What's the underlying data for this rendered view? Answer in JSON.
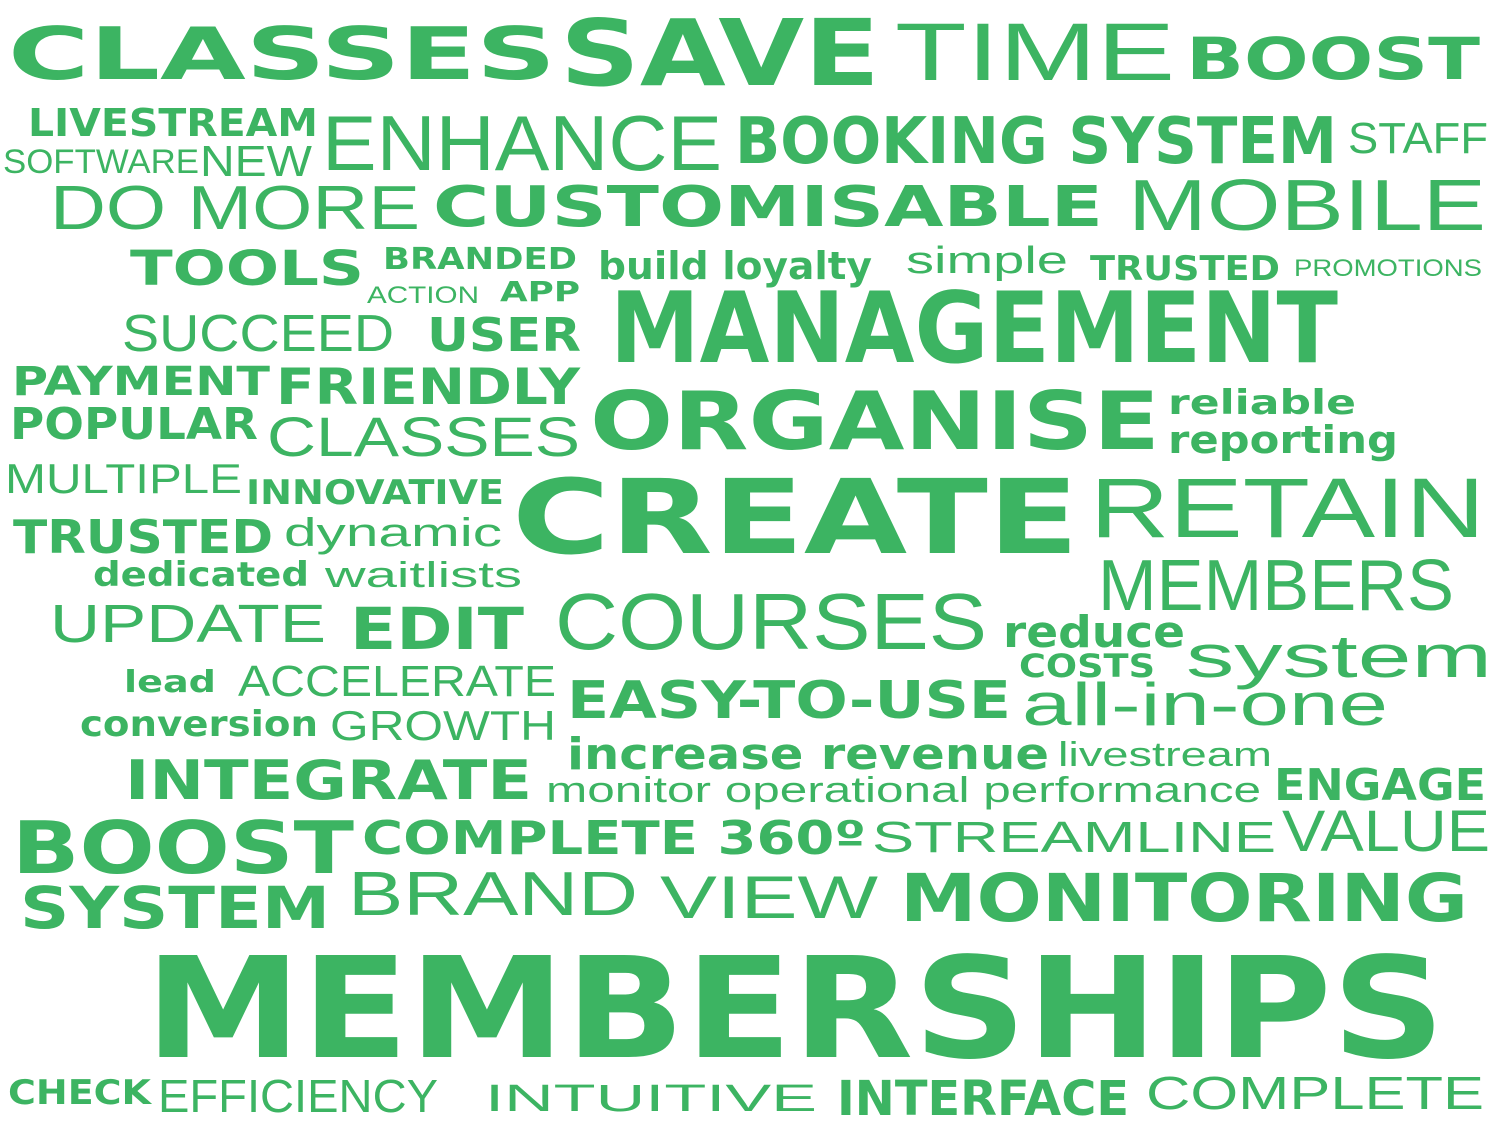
{
  "colors": {
    "text": "#3cb462",
    "background": "#ffffff"
  },
  "words": [
    {
      "id": "classes-1",
      "text": "CLASSES",
      "weight": "bold"
    },
    {
      "id": "save",
      "text": "SAVE",
      "weight": "bold"
    },
    {
      "id": "time",
      "text": "TIME",
      "weight": "light"
    },
    {
      "id": "boost-1",
      "text": "BOOST",
      "weight": "bold"
    },
    {
      "id": "livestream-1",
      "text": "LIVESTREAM",
      "weight": "bold"
    },
    {
      "id": "enhance",
      "text": "ENHANCE",
      "weight": "light"
    },
    {
      "id": "booking-system",
      "text": "BOOKING SYSTEM",
      "weight": "bold"
    },
    {
      "id": "staff",
      "text": "STAFF",
      "weight": "light"
    },
    {
      "id": "software",
      "text": "SOFTWARE",
      "weight": "light"
    },
    {
      "id": "new",
      "text": "NEW",
      "weight": "light"
    },
    {
      "id": "do-more",
      "text": "DO MORE",
      "weight": "light"
    },
    {
      "id": "customisable",
      "text": "CUSTOMISABLE",
      "weight": "bold"
    },
    {
      "id": "mobile",
      "text": "MOBILE",
      "weight": "light"
    },
    {
      "id": "tools",
      "text": "TOOLS",
      "weight": "bold"
    },
    {
      "id": "branded",
      "text": "BRANDED",
      "weight": "bold"
    },
    {
      "id": "build-loyalty",
      "text": "build loyalty",
      "weight": "bold"
    },
    {
      "id": "simple",
      "text": "simple",
      "weight": "light"
    },
    {
      "id": "trusted-1",
      "text": "TRUSTED",
      "weight": "bold"
    },
    {
      "id": "promotions",
      "text": "PROMOTIONS",
      "weight": "light"
    },
    {
      "id": "action",
      "text": "ACTION",
      "weight": "light"
    },
    {
      "id": "app",
      "text": "APP",
      "weight": "bold"
    },
    {
      "id": "succeed",
      "text": "SUCCEED",
      "weight": "light"
    },
    {
      "id": "user",
      "text": "USER",
      "weight": "bold"
    },
    {
      "id": "management",
      "text": "MANAGEMENT",
      "weight": "bold"
    },
    {
      "id": "payment",
      "text": "PAYMENT",
      "weight": "bold"
    },
    {
      "id": "friendly",
      "text": "FRIENDLY",
      "weight": "bold"
    },
    {
      "id": "popular",
      "text": "POPULAR",
      "weight": "bold"
    },
    {
      "id": "classes-2",
      "text": "CLASSES",
      "weight": "light"
    },
    {
      "id": "organise",
      "text": "ORGANISE",
      "weight": "bold"
    },
    {
      "id": "reliable",
      "text": "reliable",
      "weight": "bold"
    },
    {
      "id": "reporting",
      "text": "reporting",
      "weight": "bold"
    },
    {
      "id": "multiple",
      "text": "MULTIPLE",
      "weight": "light"
    },
    {
      "id": "innovative",
      "text": "INNOVATIVE",
      "weight": "bold"
    },
    {
      "id": "create",
      "text": "CREATE",
      "weight": "bold"
    },
    {
      "id": "retain",
      "text": "RETAIN",
      "weight": "light"
    },
    {
      "id": "trusted-2",
      "text": "TRUSTED",
      "weight": "bold"
    },
    {
      "id": "dynamic",
      "text": "dynamic",
      "weight": "light"
    },
    {
      "id": "dedicated",
      "text": "dedicated",
      "weight": "bold"
    },
    {
      "id": "waitlists",
      "text": "waitlists",
      "weight": "light"
    },
    {
      "id": "members",
      "text": "MEMBERS",
      "weight": "light"
    },
    {
      "id": "update",
      "text": "UPDATE",
      "weight": "light"
    },
    {
      "id": "edit",
      "text": "EDIT",
      "weight": "bold"
    },
    {
      "id": "courses",
      "text": "COURSES",
      "weight": "light"
    },
    {
      "id": "reduce",
      "text": "reduce",
      "weight": "bold"
    },
    {
      "id": "system-1",
      "text": "system",
      "weight": "light"
    },
    {
      "id": "costs",
      "text": "COSTS",
      "weight": "bold"
    },
    {
      "id": "lead",
      "text": "lead",
      "weight": "bold"
    },
    {
      "id": "accelerate",
      "text": "ACCELERATE",
      "weight": "light"
    },
    {
      "id": "easy-to-use",
      "text": "EASY-TO-USE",
      "weight": "bold"
    },
    {
      "id": "all-in-one",
      "text": "all-in-one",
      "weight": "light"
    },
    {
      "id": "conversion",
      "text": "conversion",
      "weight": "bold"
    },
    {
      "id": "growth",
      "text": "GROWTH",
      "weight": "light"
    },
    {
      "id": "increase-revenue",
      "text": "increase revenue",
      "weight": "bold"
    },
    {
      "id": "livestream-2",
      "text": "livestream",
      "weight": "light"
    },
    {
      "id": "integrate",
      "text": "INTEGRATE",
      "weight": "bold"
    },
    {
      "id": "monitor-performance",
      "text": "monitor operational performance",
      "weight": "light"
    },
    {
      "id": "engage",
      "text": "ENGAGE",
      "weight": "bold"
    },
    {
      "id": "boost-2",
      "text": "BOOST",
      "weight": "bold"
    },
    {
      "id": "complete-360",
      "text": "COMPLETE 360º",
      "weight": "bold"
    },
    {
      "id": "streamline",
      "text": "STREAMLINE",
      "weight": "light"
    },
    {
      "id": "value",
      "text": "VALUE",
      "weight": "light"
    },
    {
      "id": "system-2",
      "text": "SYSTEM",
      "weight": "bold"
    },
    {
      "id": "brand",
      "text": "BRAND",
      "weight": "light"
    },
    {
      "id": "view",
      "text": "VIEW",
      "weight": "light"
    },
    {
      "id": "monitoring",
      "text": "MONITORING",
      "weight": "bold"
    },
    {
      "id": "memberships",
      "text": "MEMBERSHIPS",
      "weight": "bold"
    },
    {
      "id": "check",
      "text": "CHECK",
      "weight": "bold"
    },
    {
      "id": "efficiency",
      "text": "EFFICIENCY",
      "weight": "light"
    },
    {
      "id": "intuitive",
      "text": "INTUITIVE",
      "weight": "light"
    },
    {
      "id": "interface",
      "text": "INTERFACE",
      "weight": "bold"
    },
    {
      "id": "complete",
      "text": "COMPLETE",
      "weight": "light"
    }
  ]
}
